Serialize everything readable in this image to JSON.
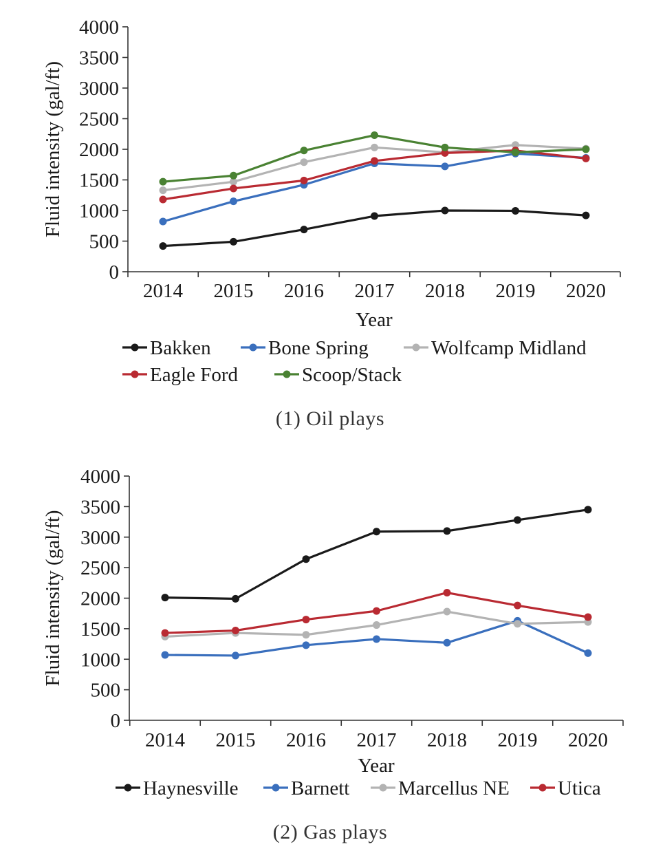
{
  "chart_data": [
    {
      "type": "line",
      "caption": "(1) Oil plays",
      "xlabel": "Year",
      "ylabel": "Fluid intensity (gal/ft)",
      "categories": [
        "2014",
        "2015",
        "2016",
        "2017",
        "2018",
        "2019",
        "2020"
      ],
      "ylim": [
        0,
        4000
      ],
      "yticks": [
        0,
        500,
        1000,
        1500,
        2000,
        2500,
        3000,
        3500,
        4000
      ],
      "grid": false,
      "legend_position": "bottom",
      "series": [
        {
          "name": "Bakken",
          "color": "#1a1a1a",
          "values": [
            420,
            490,
            690,
            910,
            1000,
            995,
            920
          ]
        },
        {
          "name": "Bone Spring",
          "color": "#3a6fbd",
          "values": [
            820,
            1150,
            1420,
            1770,
            1720,
            1930,
            1860
          ]
        },
        {
          "name": "Wolfcamp Midland",
          "color": "#b3b3b3",
          "values": [
            1330,
            1470,
            1790,
            2030,
            1950,
            2070,
            2010
          ]
        },
        {
          "name": "Eagle Ford",
          "color": "#b92a32",
          "values": [
            1180,
            1360,
            1490,
            1810,
            1940,
            1980,
            1850
          ]
        },
        {
          "name": "Scoop/Stack",
          "color": "#4a8233",
          "values": [
            1470,
            1570,
            1980,
            2230,
            2030,
            1950,
            2000
          ]
        }
      ]
    },
    {
      "type": "line",
      "caption": "(2) Gas plays",
      "xlabel": "Year",
      "ylabel": "Fluid intensity (gal/ft)",
      "categories": [
        "2014",
        "2015",
        "2016",
        "2017",
        "2018",
        "2019",
        "2020"
      ],
      "ylim": [
        0,
        4000
      ],
      "yticks": [
        0,
        500,
        1000,
        1500,
        2000,
        2500,
        3000,
        3500,
        4000
      ],
      "grid": false,
      "legend_position": "bottom",
      "series": [
        {
          "name": "Haynesville",
          "color": "#1a1a1a",
          "values": [
            2010,
            1990,
            2640,
            3090,
            3100,
            3280,
            3450
          ]
        },
        {
          "name": "Barnett",
          "color": "#3a6fbd",
          "values": [
            1070,
            1060,
            1230,
            1330,
            1270,
            1630,
            1100
          ]
        },
        {
          "name": "Marcellus NE",
          "color": "#b3b3b3",
          "values": [
            1370,
            1430,
            1400,
            1560,
            1780,
            1580,
            1610
          ]
        },
        {
          "name": "Utica",
          "color": "#b92a32",
          "values": [
            1430,
            1470,
            1650,
            1790,
            2090,
            1880,
            1690
          ]
        }
      ]
    }
  ]
}
